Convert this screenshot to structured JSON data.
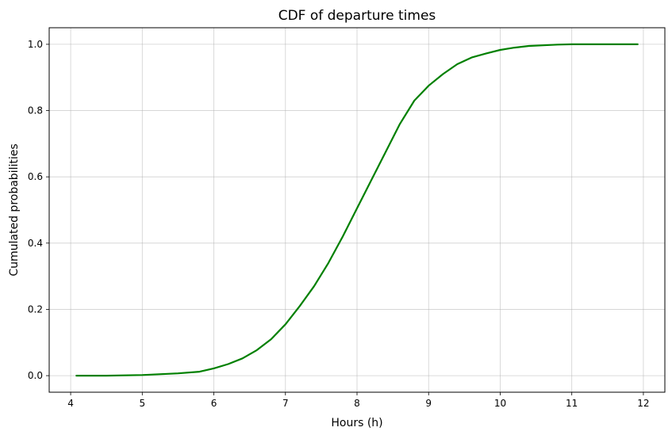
{
  "chart_data": {
    "type": "line",
    "title": "CDF of departure times",
    "xlabel": "Hours (h)",
    "ylabel": "Cumulated probabilities",
    "xlim": [
      3.7,
      12.3
    ],
    "ylim": [
      -0.05,
      1.05
    ],
    "xticks": [
      4,
      5,
      6,
      7,
      8,
      9,
      10,
      11,
      12
    ],
    "yticks": [
      0.0,
      0.2,
      0.4,
      0.6,
      0.8,
      1.0
    ],
    "xtick_labels": [
      "4",
      "5",
      "6",
      "7",
      "8",
      "9",
      "10",
      "11",
      "12"
    ],
    "ytick_labels": [
      "0.0",
      "0.2",
      "0.4",
      "0.6",
      "0.8",
      "1.0"
    ],
    "grid": true,
    "line_color": "#008000",
    "series": [
      {
        "x": [
          4.08,
          4.5,
          5.0,
          5.5,
          5.8,
          6.0,
          6.2,
          6.4,
          6.6,
          6.8,
          7.0,
          7.2,
          7.4,
          7.6,
          7.8,
          8.0,
          8.2,
          8.4,
          8.6,
          8.8,
          9.0,
          9.2,
          9.4,
          9.6,
          9.8,
          10.0,
          10.2,
          10.4,
          10.6,
          10.8,
          11.0,
          11.3,
          11.92
        ],
        "y": [
          0.0,
          0.0,
          0.002,
          0.007,
          0.012,
          0.022,
          0.035,
          0.052,
          0.077,
          0.11,
          0.155,
          0.21,
          0.27,
          0.34,
          0.42,
          0.505,
          0.59,
          0.675,
          0.76,
          0.83,
          0.875,
          0.91,
          0.94,
          0.96,
          0.972,
          0.983,
          0.99,
          0.995,
          0.997,
          0.999,
          1.0,
          1.0,
          1.0
        ]
      }
    ]
  }
}
